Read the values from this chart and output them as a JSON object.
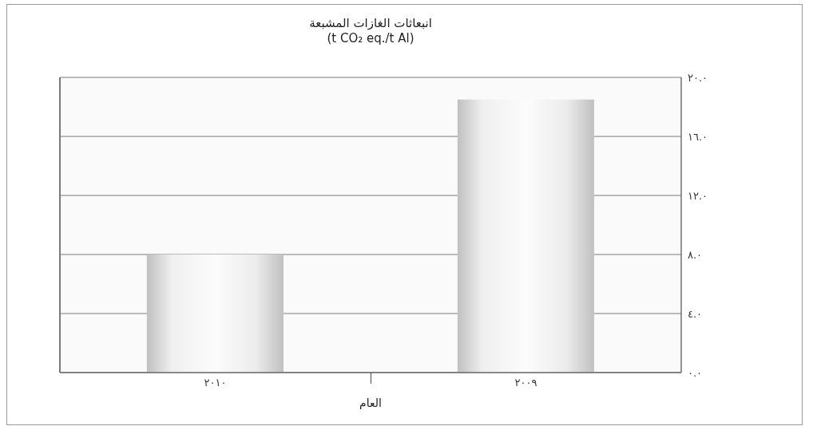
{
  "chart_data": {
    "type": "bar",
    "title": "انبعاثات الغازات المشبعة",
    "subtitle": "(t CO₂ eq./t Al)",
    "xlabel": "العام",
    "categories": [
      "٢٠١٠",
      "٢٠٠٩"
    ],
    "values": [
      8,
      18.5
    ],
    "color": "#c0c0c0",
    "ylim": [
      0,
      20
    ],
    "yticks": [
      {
        "value": 0,
        "label": "٠.٠"
      },
      {
        "value": 4,
        "label": "٤.٠"
      },
      {
        "value": 8,
        "label": "٨.٠"
      },
      {
        "value": 12,
        "label": "١٢.٠"
      },
      {
        "value": 16,
        "label": "١٦.٠"
      },
      {
        "value": 20,
        "label": "٢٠.٠"
      }
    ],
    "grid": "y"
  }
}
